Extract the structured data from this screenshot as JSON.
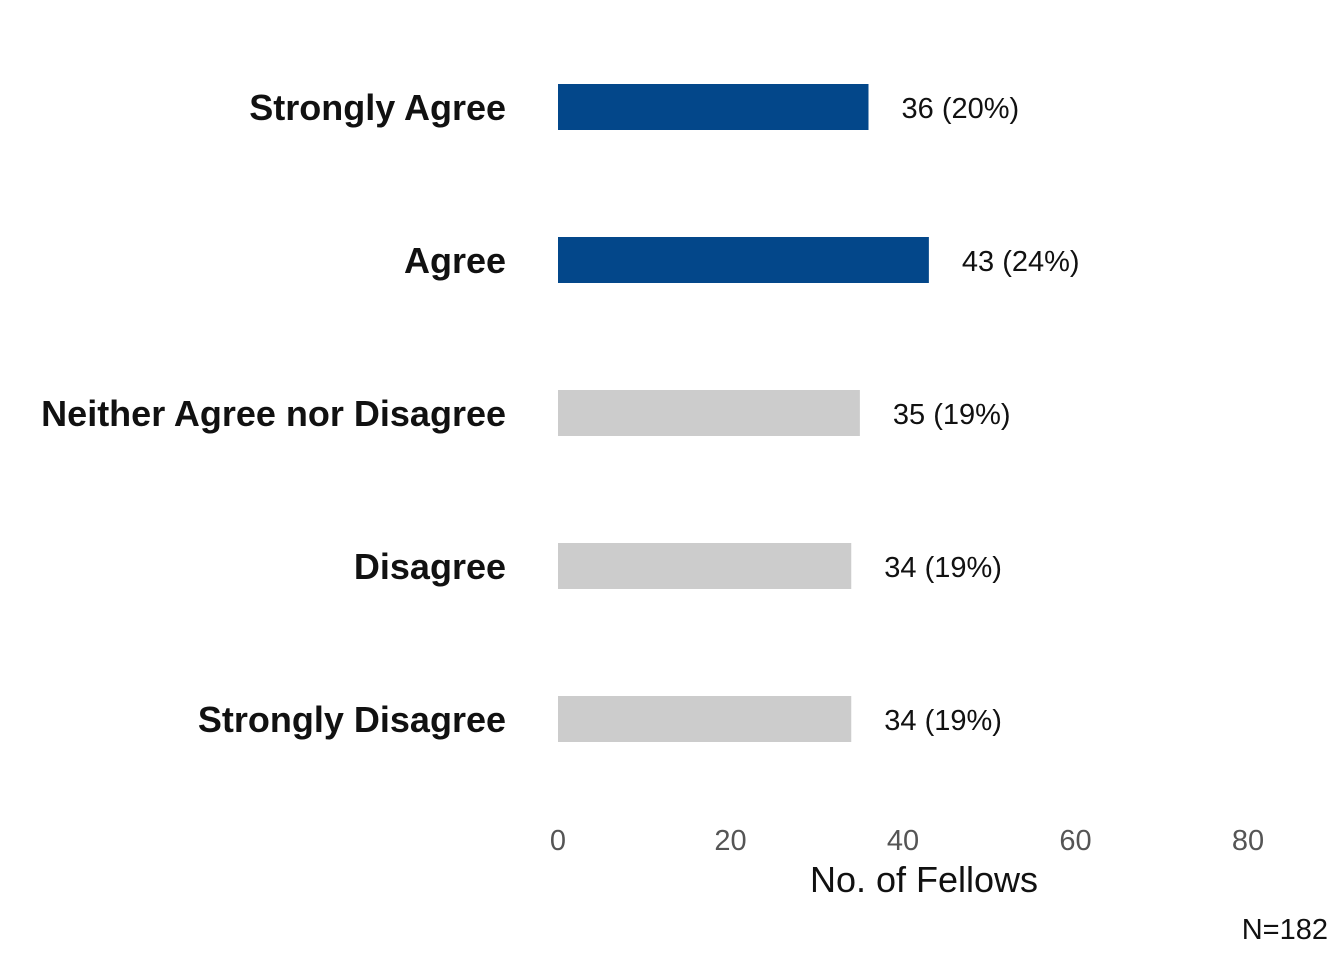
{
  "chart_data": {
    "type": "bar",
    "orientation": "horizontal",
    "categories": [
      "Strongly Agree",
      "Agree",
      "Neither Agree nor Disagree",
      "Disagree",
      "Strongly Disagree"
    ],
    "values": [
      36,
      43,
      35,
      34,
      34
    ],
    "data_labels": [
      "36 (20%)",
      "43 (24%)",
      "35 (19%)",
      "34 (19%)",
      "34 (19%)"
    ],
    "bar_colors": [
      "#03478A",
      "#03478A",
      "#CCCCCC",
      "#CCCCCC",
      "#CCCCCC"
    ],
    "xlabel": "No. of Fellows",
    "ylabel": "",
    "xlim": [
      0,
      80
    ],
    "xticks": [
      0,
      20,
      40,
      60,
      80
    ],
    "xtick_labels": [
      "0",
      "20",
      "40",
      "60",
      "80"
    ],
    "grid": false,
    "caption": "N=182"
  }
}
